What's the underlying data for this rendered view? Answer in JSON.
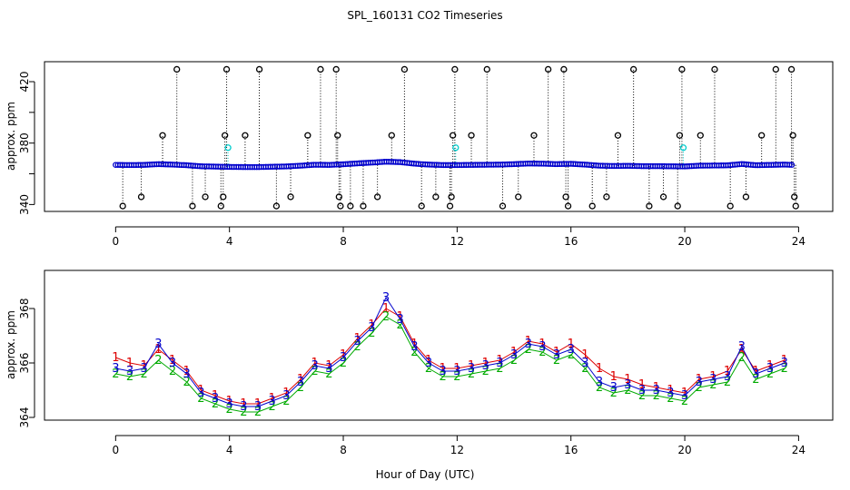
{
  "figure": {
    "title": "SPL_160131  CO2 Timeseries",
    "xlabel": "Hour of Day (UTC)"
  },
  "colors": {
    "background": "#ffffff",
    "outlier": "#000000",
    "flagged": "#00cccc",
    "series1": "#dd0000",
    "series2": "#00aa00",
    "series3": "#0000cc"
  },
  "chart_data": [
    {
      "type": "scatter",
      "ylabel": "approx. ppm",
      "xlim": [
        -2.5,
        25.2
      ],
      "ylim": [
        335.5,
        433
      ],
      "xticks": [
        "0",
        "4",
        "8",
        "12",
        "16",
        "20",
        "24"
      ],
      "yticks": [
        "340",
        "360",
        "380",
        "400",
        "420"
      ],
      "ytick_labels_shown": [
        "340",
        "380",
        "420"
      ],
      "grid": false,
      "baseline": [
        [
          0,
          365.8
        ],
        [
          0.5,
          365.7
        ],
        [
          1,
          365.8
        ],
        [
          1.5,
          366.3
        ],
        [
          2,
          366.0
        ],
        [
          2.5,
          365.6
        ],
        [
          3,
          364.9
        ],
        [
          3.5,
          364.7
        ],
        [
          4,
          364.5
        ],
        [
          4.5,
          364.4
        ],
        [
          5,
          364.4
        ],
        [
          5.5,
          364.6
        ],
        [
          6,
          364.8
        ],
        [
          6.5,
          365.3
        ],
        [
          7,
          365.9
        ],
        [
          7.5,
          365.8
        ],
        [
          8,
          366.2
        ],
        [
          8.5,
          366.8
        ],
        [
          9,
          367.3
        ],
        [
          9.5,
          367.9
        ],
        [
          10,
          367.6
        ],
        [
          10.5,
          366.6
        ],
        [
          11,
          366.0
        ],
        [
          11.5,
          365.7
        ],
        [
          12,
          365.7
        ],
        [
          12.5,
          365.8
        ],
        [
          13,
          365.9
        ],
        [
          13.5,
          366.0
        ],
        [
          14,
          366.3
        ],
        [
          14.5,
          366.7
        ],
        [
          15,
          366.6
        ],
        [
          15.5,
          366.3
        ],
        [
          16,
          366.5
        ],
        [
          16.5,
          366.0
        ],
        [
          17,
          365.3
        ],
        [
          17.5,
          365.1
        ],
        [
          18,
          365.2
        ],
        [
          18.5,
          365.0
        ],
        [
          19,
          365.0
        ],
        [
          19.5,
          364.9
        ],
        [
          20,
          364.8
        ],
        [
          20.5,
          365.3
        ],
        [
          21,
          365.4
        ],
        [
          21.5,
          365.5
        ],
        [
          22,
          366.4
        ],
        [
          22.5,
          365.6
        ],
        [
          23,
          365.8
        ],
        [
          23.5,
          366.0
        ],
        [
          23.8,
          365.8
        ]
      ],
      "flagged_points": [
        [
          3.95,
          377
        ],
        [
          11.95,
          377
        ],
        [
          19.95,
          377
        ]
      ],
      "spikes": [
        [
          0.25,
          339
        ],
        [
          0.9,
          345
        ],
        [
          1.65,
          385
        ],
        [
          2.15,
          428
        ],
        [
          2.7,
          339
        ],
        [
          3.15,
          345
        ],
        [
          3.7,
          339
        ],
        [
          3.78,
          345
        ],
        [
          3.84,
          385
        ],
        [
          3.9,
          428
        ],
        [
          4.55,
          385
        ],
        [
          5.05,
          428
        ],
        [
          5.65,
          339
        ],
        [
          6.15,
          345
        ],
        [
          6.75,
          385
        ],
        [
          7.2,
          428
        ],
        [
          7.75,
          428
        ],
        [
          7.8,
          385
        ],
        [
          7.85,
          345
        ],
        [
          7.9,
          339
        ],
        [
          8.25,
          339
        ],
        [
          8.7,
          339
        ],
        [
          9.2,
          345
        ],
        [
          9.7,
          385
        ],
        [
          10.15,
          428
        ],
        [
          10.75,
          339
        ],
        [
          11.25,
          345
        ],
        [
          11.75,
          339
        ],
        [
          11.8,
          345
        ],
        [
          11.85,
          385
        ],
        [
          11.92,
          428
        ],
        [
          12.5,
          385
        ],
        [
          13.05,
          428
        ],
        [
          13.6,
          339
        ],
        [
          14.15,
          345
        ],
        [
          14.7,
          385
        ],
        [
          15.2,
          428
        ],
        [
          15.75,
          428
        ],
        [
          15.82,
          345
        ],
        [
          15.9,
          339
        ],
        [
          16.75,
          339
        ],
        [
          17.25,
          345
        ],
        [
          17.65,
          385
        ],
        [
          18.2,
          428
        ],
        [
          18.75,
          339
        ],
        [
          19.25,
          345
        ],
        [
          19.75,
          339
        ],
        [
          19.82,
          385
        ],
        [
          19.9,
          428
        ],
        [
          20.55,
          385
        ],
        [
          21.05,
          428
        ],
        [
          21.6,
          339
        ],
        [
          22.15,
          345
        ],
        [
          22.7,
          385
        ],
        [
          23.2,
          428
        ],
        [
          23.75,
          428
        ],
        [
          23.8,
          385
        ],
        [
          23.85,
          345
        ],
        [
          23.9,
          339
        ]
      ]
    },
    {
      "type": "line",
      "ylabel": "approx. ppm",
      "xlim": [
        -2.5,
        25.2
      ],
      "ylim": [
        363.9,
        369.4
      ],
      "xticks": [
        "0",
        "4",
        "8",
        "12",
        "16",
        "20",
        "24"
      ],
      "yticks": [
        "364",
        "366",
        "368"
      ],
      "grid": false,
      "series": [
        {
          "name": "1",
          "x": [
            0,
            0.5,
            1,
            1.5,
            2,
            2.5,
            3,
            3.5,
            4,
            4.5,
            5,
            5.5,
            6,
            6.5,
            7,
            7.5,
            8,
            8.5,
            9,
            9.5,
            10,
            10.5,
            11,
            11.5,
            12,
            12.5,
            13,
            13.5,
            14,
            14.5,
            15,
            15.5,
            16,
            16.5,
            17,
            17.5,
            18,
            18.5,
            19,
            19.5,
            20,
            20.5,
            21,
            21.5,
            22,
            22.5,
            23,
            23.5
          ],
          "values": [
            366.2,
            366.0,
            365.9,
            366.5,
            366.1,
            365.7,
            365.0,
            364.8,
            364.6,
            364.5,
            364.5,
            364.7,
            364.9,
            365.4,
            366.0,
            365.9,
            366.3,
            366.9,
            367.4,
            368.0,
            367.7,
            366.7,
            366.1,
            365.8,
            365.8,
            365.9,
            366.0,
            366.1,
            366.4,
            366.8,
            366.7,
            366.4,
            366.7,
            366.3,
            365.8,
            365.5,
            365.4,
            365.2,
            365.1,
            365.0,
            364.9,
            365.4,
            365.5,
            365.7,
            366.5,
            365.7,
            365.9,
            366.1
          ]
        },
        {
          "name": "2",
          "x": [
            0,
            0.5,
            1,
            1.5,
            2,
            2.5,
            3,
            3.5,
            4,
            4.5,
            5,
            5.5,
            6,
            6.5,
            7,
            7.5,
            8,
            8.5,
            9,
            9.5,
            10,
            10.5,
            11,
            11.5,
            12,
            12.5,
            13,
            13.5,
            14,
            14.5,
            15,
            15.5,
            16,
            16.5,
            17,
            17.5,
            18,
            18.5,
            19,
            19.5,
            20,
            20.5,
            21,
            21.5,
            22,
            22.5,
            23,
            23.5
          ],
          "values": [
            365.6,
            365.5,
            365.6,
            366.1,
            365.7,
            365.3,
            364.7,
            364.5,
            364.3,
            364.2,
            364.2,
            364.4,
            364.6,
            365.1,
            365.7,
            365.6,
            366.0,
            366.6,
            367.1,
            367.7,
            367.4,
            366.4,
            365.8,
            365.5,
            365.5,
            365.6,
            365.7,
            365.8,
            366.1,
            366.5,
            366.4,
            366.1,
            366.3,
            365.8,
            365.1,
            364.9,
            365.0,
            364.8,
            364.8,
            364.7,
            364.6,
            365.1,
            365.2,
            365.3,
            366.2,
            365.4,
            365.6,
            365.8
          ]
        },
        {
          "name": "3",
          "x": [
            0,
            0.5,
            1,
            1.5,
            2,
            2.5,
            3,
            3.5,
            4,
            4.5,
            5,
            5.5,
            6,
            6.5,
            7,
            7.5,
            8,
            8.5,
            9,
            9.5,
            10,
            10.5,
            11,
            11.5,
            12,
            12.5,
            13,
            13.5,
            14,
            14.5,
            15,
            15.5,
            16,
            16.5,
            17,
            17.5,
            18,
            18.5,
            19,
            19.5,
            20,
            20.5,
            21,
            21.5,
            22,
            22.5,
            23,
            23.5
          ],
          "values": [
            365.8,
            365.7,
            365.8,
            366.7,
            366.0,
            365.6,
            364.9,
            364.7,
            364.5,
            364.4,
            364.4,
            364.6,
            364.8,
            365.3,
            365.9,
            365.8,
            366.2,
            366.8,
            367.3,
            368.4,
            367.6,
            366.6,
            366.0,
            365.7,
            365.7,
            365.8,
            365.9,
            366.0,
            366.3,
            366.7,
            366.6,
            366.3,
            366.5,
            366.0,
            365.3,
            365.1,
            365.2,
            365.0,
            365.0,
            364.9,
            364.8,
            365.3,
            365.4,
            365.5,
            366.6,
            365.6,
            365.8,
            366.0
          ]
        }
      ]
    }
  ]
}
